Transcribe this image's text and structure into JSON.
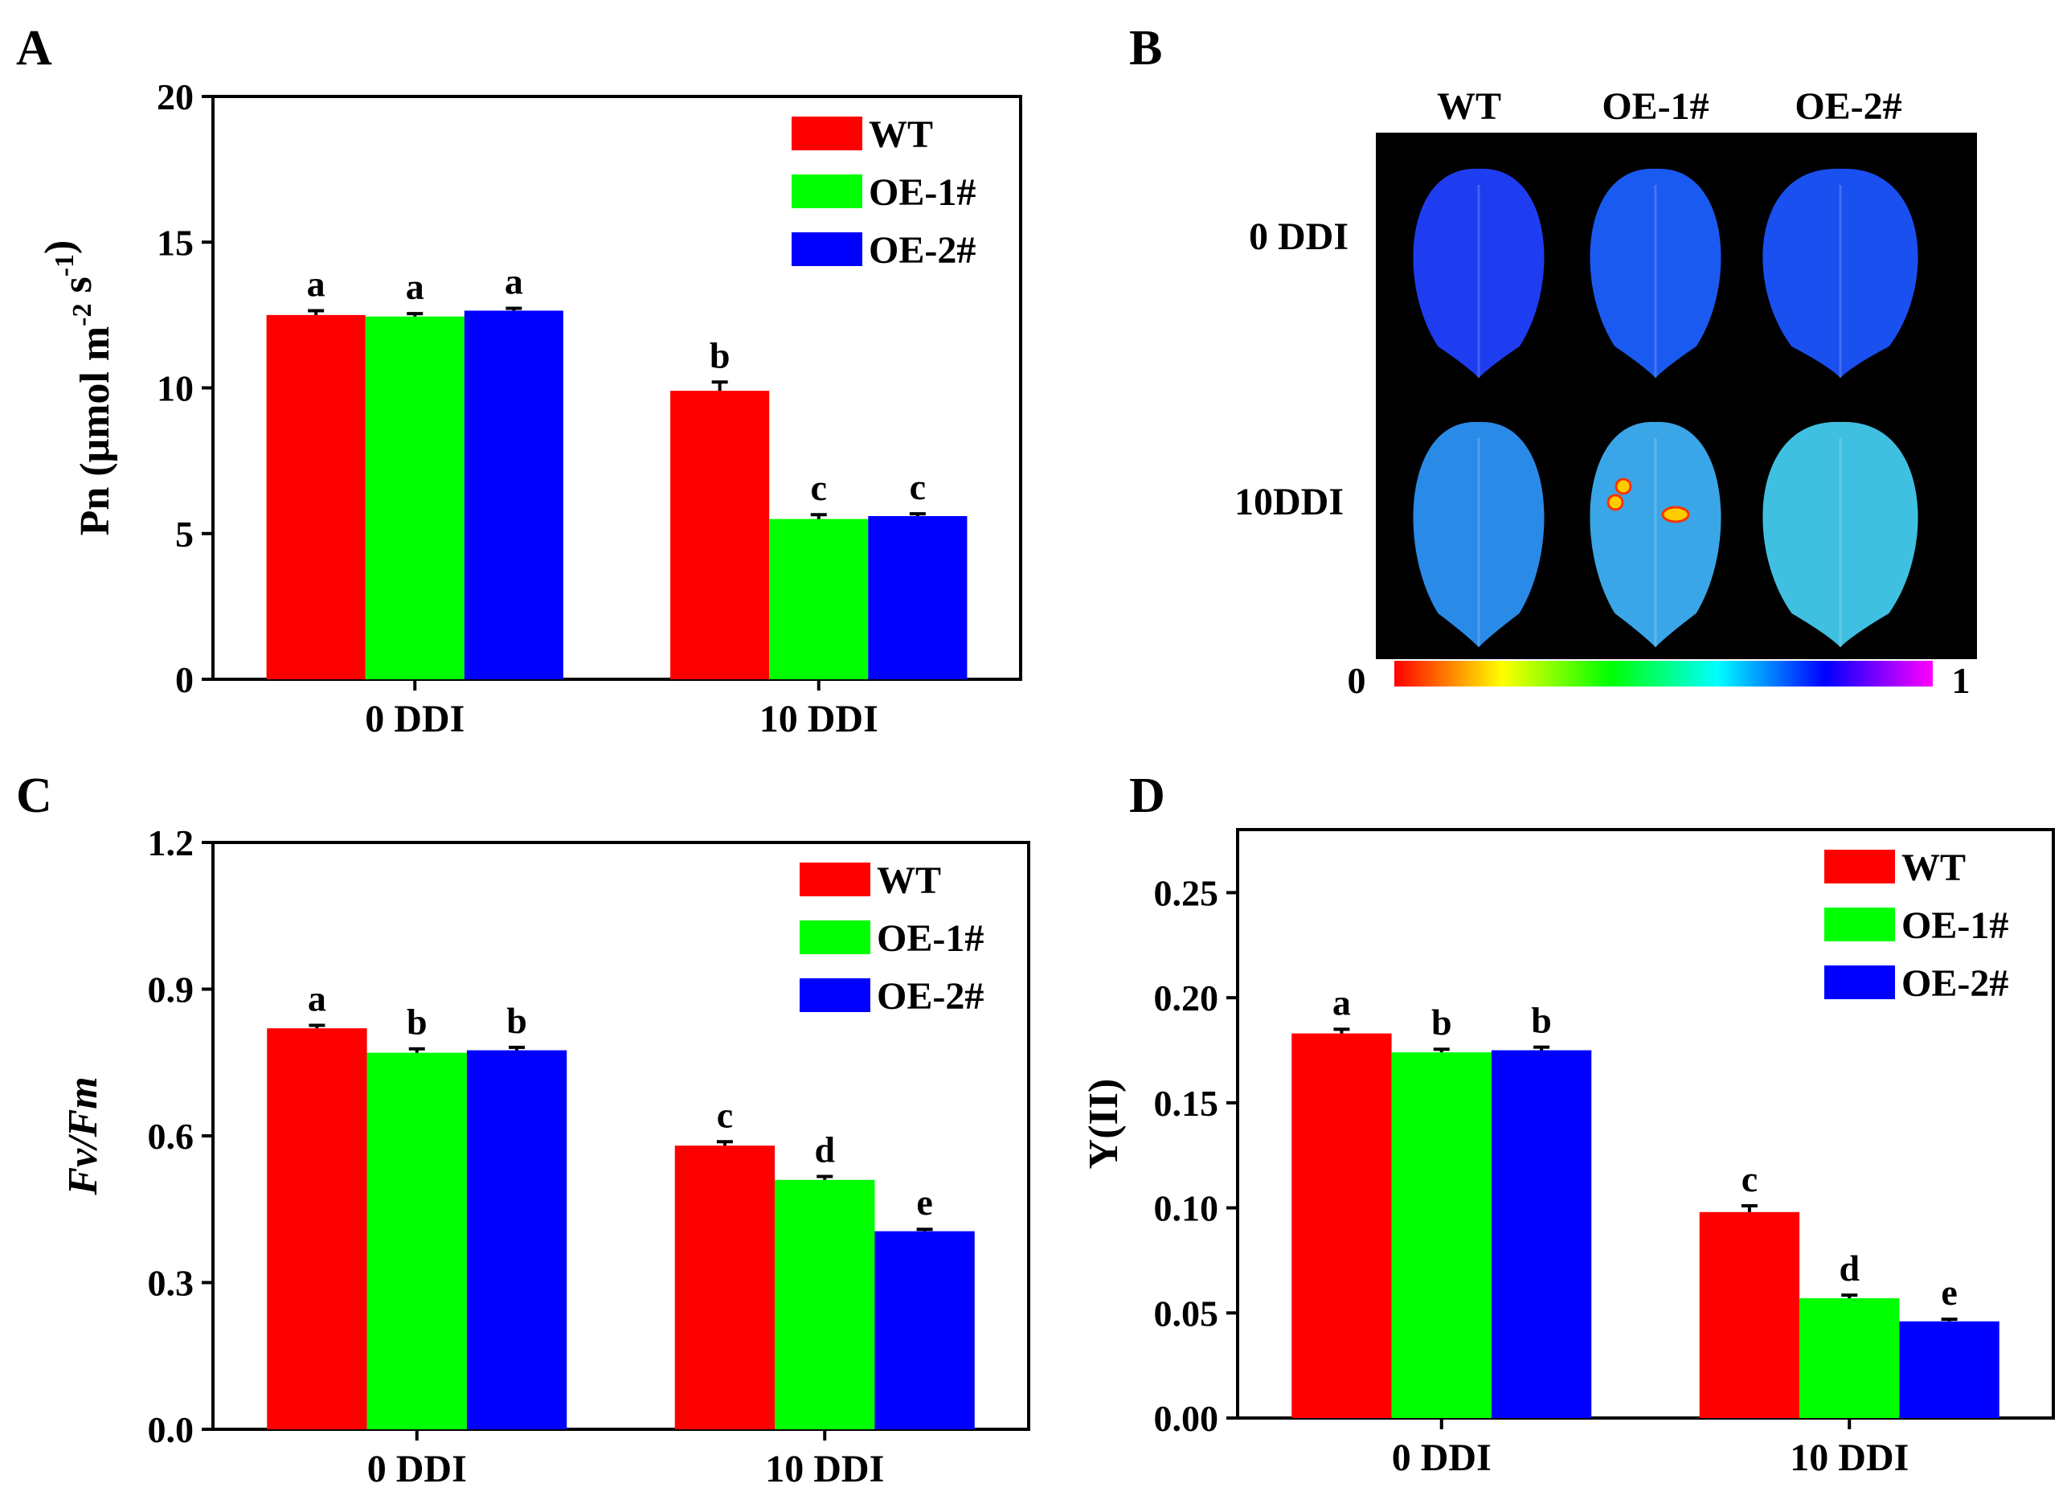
{
  "chart_data": [
    {
      "panel": "A",
      "type": "bar",
      "ylabel": "Pn (μmol m-2 s-1)",
      "ylabel_parts": {
        "base": "Pn (μmol m",
        "exp1": "-2",
        "mid": " s",
        "exp2": "-1",
        "end": ")"
      },
      "categories": [
        "0 DDI",
        "10 DDI"
      ],
      "series": [
        {
          "name": "WT",
          "color": "#ff0000",
          "values": [
            12.5,
            9.9
          ],
          "errors": [
            0.15,
            0.3
          ],
          "letters": [
            "a",
            "b"
          ]
        },
        {
          "name": "OE-1#",
          "color": "#00ff00",
          "values": [
            12.45,
            5.5
          ],
          "errors": [
            0.1,
            0.15
          ],
          "letters": [
            "a",
            "c"
          ]
        },
        {
          "name": "OE-2#",
          "color": "#0000ff",
          "values": [
            12.65,
            5.6
          ],
          "errors": [
            0.08,
            0.08
          ],
          "letters": [
            "a",
            "c"
          ]
        }
      ],
      "ylim": [
        0,
        20
      ],
      "yticks": [
        0,
        5,
        10,
        15,
        20
      ],
      "ytick_labels": [
        "0",
        "5",
        "10",
        "15",
        "20"
      ],
      "legend_position": "top-right"
    },
    {
      "panel": "C",
      "type": "bar",
      "ylabel": "Fv/Fm",
      "categories": [
        "0 DDI",
        "10 DDI"
      ],
      "series": [
        {
          "name": "WT",
          "color": "#ff0000",
          "values": [
            0.82,
            0.58
          ],
          "errors": [
            0.006,
            0.008
          ],
          "letters": [
            "a",
            "c"
          ]
        },
        {
          "name": "OE-1#",
          "color": "#00ff00",
          "values": [
            0.77,
            0.51
          ],
          "errors": [
            0.008,
            0.007
          ],
          "letters": [
            "b",
            "d"
          ]
        },
        {
          "name": "OE-2#",
          "color": "#0000ff",
          "values": [
            0.775,
            0.405
          ],
          "errors": [
            0.006,
            0.004
          ],
          "letters": [
            "b",
            "e"
          ]
        }
      ],
      "ylim": [
        0,
        1.2
      ],
      "yticks": [
        0,
        0.3,
        0.6,
        0.9,
        1.2
      ],
      "ytick_labels": [
        "0.0",
        "0.3",
        "0.6",
        "0.9",
        "1.2"
      ],
      "legend_position": "top-right"
    },
    {
      "panel": "D",
      "type": "bar",
      "ylabel": "Y(II)",
      "categories": [
        "0 DDI",
        "10 DDI"
      ],
      "series": [
        {
          "name": "WT",
          "color": "#ff0000",
          "values": [
            0.183,
            0.098
          ],
          "errors": [
            0.002,
            0.003
          ],
          "letters": [
            "a",
            "c"
          ]
        },
        {
          "name": "OE-1#",
          "color": "#00ff00",
          "values": [
            0.174,
            0.057
          ],
          "errors": [
            0.0015,
            0.0015
          ],
          "letters": [
            "b",
            "d"
          ]
        },
        {
          "name": "OE-2#",
          "color": "#0000ff",
          "values": [
            0.175,
            0.046
          ],
          "errors": [
            0.0015,
            0.001
          ],
          "letters": [
            "b",
            "e"
          ]
        }
      ],
      "ylim": [
        0,
        0.28
      ],
      "yticks": [
        0,
        0.05,
        0.1,
        0.15,
        0.2,
        0.25
      ],
      "ytick_labels": [
        "0.00",
        "0.05",
        "0.10",
        "0.15",
        "0.20",
        "0.25"
      ],
      "legend_position": "top-right"
    }
  ],
  "panel_labels": [
    "A",
    "B",
    "C",
    "D"
  ],
  "imaging": {
    "columns": [
      "WT",
      "OE-1#",
      "OE-2#"
    ],
    "rows": [
      "0 DDI",
      "10DDI"
    ],
    "colorbar_min": "0",
    "colorbar_max": "1",
    "colorbar_stops": [
      "#ff0000",
      "#ffff00",
      "#00ff00",
      "#00ffff",
      "#0000ff",
      "#ff00ff"
    ],
    "leaf_colors": {
      "0 DDI": [
        "#1f3df0",
        "#1a5af0",
        "#1a50f0"
      ],
      "10DDI": [
        "#2a8ae8",
        "#3aa6e8",
        "#40c0e0"
      ]
    }
  }
}
